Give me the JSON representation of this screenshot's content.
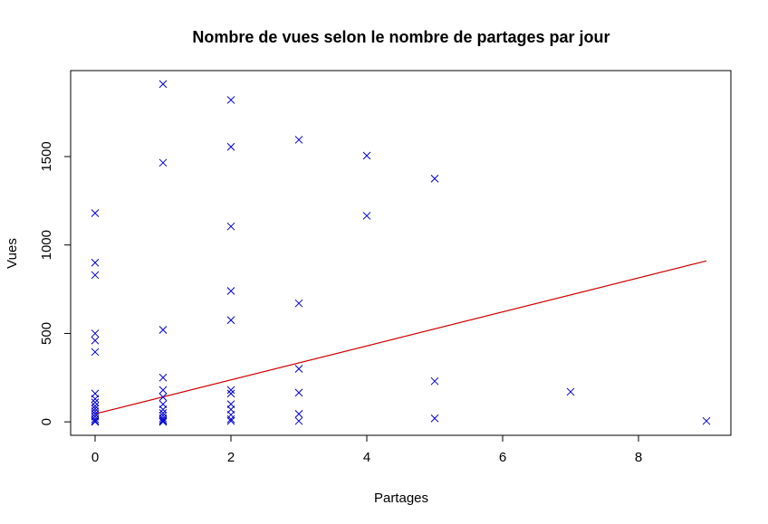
{
  "chart_data": {
    "type": "scatter",
    "title": "Nombre de vues selon le nombre de partages par jour",
    "xlabel": "Partages",
    "ylabel": "Vues",
    "xlim": [
      -0.36,
      9.36
    ],
    "ylim": [
      -76,
      1986
    ],
    "x_ticks": [
      0,
      2,
      4,
      6,
      8
    ],
    "y_ticks": [
      0,
      500,
      1000,
      1500
    ],
    "grid": false,
    "legend": "none",
    "marker": "x",
    "colors": {
      "points": "#0000cc",
      "fit": "#cc0000",
      "axes": "#000000"
    },
    "points": [
      {
        "x": 0,
        "y": 1180
      },
      {
        "x": 0,
        "y": 900
      },
      {
        "x": 0,
        "y": 830
      },
      {
        "x": 0,
        "y": 500
      },
      {
        "x": 0,
        "y": 460
      },
      {
        "x": 0,
        "y": 395
      },
      {
        "x": 0,
        "y": 160
      },
      {
        "x": 0,
        "y": 130
      },
      {
        "x": 0,
        "y": 110
      },
      {
        "x": 0,
        "y": 90
      },
      {
        "x": 0,
        "y": 75
      },
      {
        "x": 0,
        "y": 60
      },
      {
        "x": 0,
        "y": 45
      },
      {
        "x": 0,
        "y": 30
      },
      {
        "x": 0,
        "y": 15
      },
      {
        "x": 0,
        "y": 5
      },
      {
        "x": 0,
        "y": 0
      },
      {
        "x": 1,
        "y": 1910
      },
      {
        "x": 1,
        "y": 1465
      },
      {
        "x": 1,
        "y": 520
      },
      {
        "x": 1,
        "y": 250
      },
      {
        "x": 1,
        "y": 180
      },
      {
        "x": 1,
        "y": 140
      },
      {
        "x": 1,
        "y": 100
      },
      {
        "x": 1,
        "y": 70
      },
      {
        "x": 1,
        "y": 50
      },
      {
        "x": 1,
        "y": 35
      },
      {
        "x": 1,
        "y": 20
      },
      {
        "x": 1,
        "y": 10
      },
      {
        "x": 1,
        "y": 5
      },
      {
        "x": 1,
        "y": 0
      },
      {
        "x": 2,
        "y": 1820
      },
      {
        "x": 2,
        "y": 1555
      },
      {
        "x": 2,
        "y": 1105
      },
      {
        "x": 2,
        "y": 740
      },
      {
        "x": 2,
        "y": 575
      },
      {
        "x": 2,
        "y": 180
      },
      {
        "x": 2,
        "y": 160
      },
      {
        "x": 2,
        "y": 100
      },
      {
        "x": 2,
        "y": 70
      },
      {
        "x": 2,
        "y": 40
      },
      {
        "x": 2,
        "y": 15
      },
      {
        "x": 2,
        "y": 5
      },
      {
        "x": 3,
        "y": 1595
      },
      {
        "x": 3,
        "y": 670
      },
      {
        "x": 3,
        "y": 300
      },
      {
        "x": 3,
        "y": 165
      },
      {
        "x": 3,
        "y": 45
      },
      {
        "x": 3,
        "y": 5
      },
      {
        "x": 4,
        "y": 1505
      },
      {
        "x": 4,
        "y": 1165
      },
      {
        "x": 5,
        "y": 1375
      },
      {
        "x": 5,
        "y": 230
      },
      {
        "x": 5,
        "y": 20
      },
      {
        "x": 7,
        "y": 170
      },
      {
        "x": 9,
        "y": 5
      }
    ],
    "regression_line": {
      "x": [
        0,
        9
      ],
      "y": [
        45,
        910
      ]
    }
  }
}
